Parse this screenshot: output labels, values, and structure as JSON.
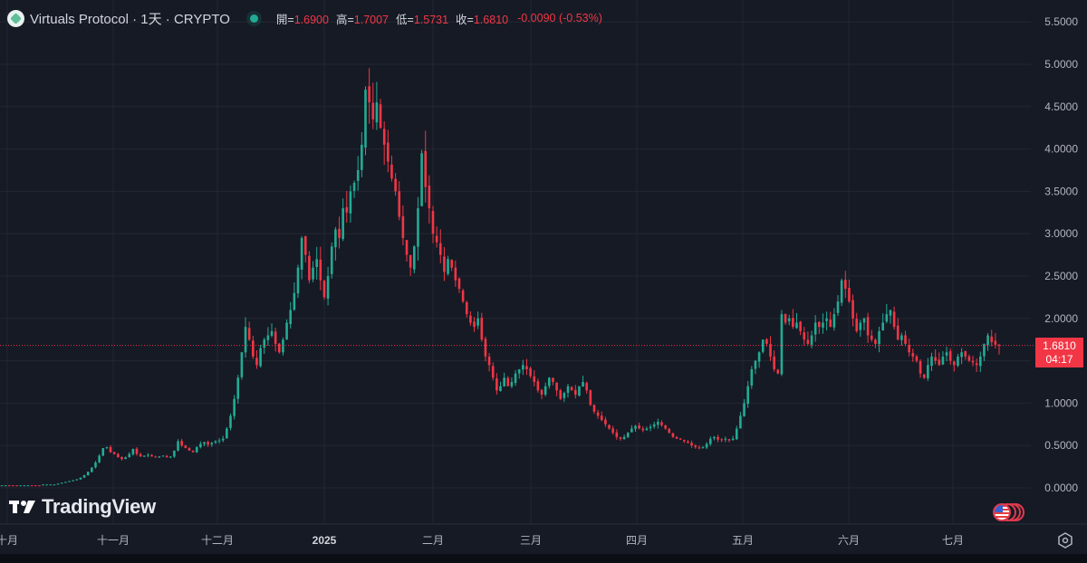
{
  "header": {
    "symbol": "Virtuals Protocol",
    "sep1": "·",
    "interval": "1天",
    "sep2": "·",
    "exchange": "CRYPTO",
    "title_full": "Virtuals Protocol · 1天 · CRYPTO",
    "logo_icon": "virtuals-logo-icon",
    "market_status_icon": "market-open-dot-icon",
    "ohlc": {
      "open_label": "開=",
      "open": "1.6900",
      "high_label": "高=",
      "high": "1.7007",
      "low_label": "低=",
      "low": "1.5731",
      "close_label": "收=",
      "close": "1.6810",
      "change": "-0.0090 (-0.53%)"
    }
  },
  "price_scale": {
    "labels": [
      "5.5000",
      "5.0000",
      "4.5000",
      "4.0000",
      "3.5000",
      "3.0000",
      "2.5000",
      "2.0000",
      "1.0000",
      "0.5000",
      "0.0000"
    ],
    "current_price": "1.6810",
    "countdown": "04:17"
  },
  "time_scale": {
    "labels": [
      "十月",
      "十一月",
      "十二月",
      "2025",
      "二月",
      "三月",
      "四月",
      "五月",
      "六月",
      "七月"
    ]
  },
  "branding": {
    "name": "TradingView",
    "mark": "TV"
  },
  "colors": {
    "background": "#161a25",
    "up": "#22ab94",
    "down": "#f23645",
    "grid": "#232733",
    "axis_text": "#b2b5be",
    "last_price_line": "#f23645"
  },
  "chart_data": {
    "type": "candlestick",
    "title": "Virtuals Protocol · 1天 · CRYPTO",
    "xlabel": "",
    "ylabel": "",
    "ylim": [
      -0.3,
      5.6
    ],
    "y_ticks": [
      0,
      0.5,
      1,
      1.5,
      2,
      2.5,
      3,
      3.5,
      4,
      4.5,
      5,
      5.5
    ],
    "x_tick_labels": [
      "十月",
      "十一月",
      "十二月",
      "2025",
      "二月",
      "三月",
      "四月",
      "五月",
      "六月",
      "七月"
    ],
    "grid": true,
    "last": {
      "open": 1.69,
      "high": 1.7007,
      "low": 1.5731,
      "close": 1.681,
      "change": -0.009,
      "change_pct": -0.53
    },
    "approx_path_note": "daily closes (approximate, read from chart)",
    "closes": [
      0.03,
      0.03,
      0.03,
      0.03,
      0.03,
      0.03,
      0.03,
      0.03,
      0.03,
      0.03,
      0.03,
      0.04,
      0.04,
      0.04,
      0.04,
      0.05,
      0.06,
      0.07,
      0.08,
      0.09,
      0.1,
      0.12,
      0.15,
      0.19,
      0.24,
      0.3,
      0.38,
      0.47,
      0.48,
      0.42,
      0.4,
      0.36,
      0.34,
      0.36,
      0.4,
      0.46,
      0.4,
      0.37,
      0.38,
      0.39,
      0.37,
      0.36,
      0.37,
      0.38,
      0.36,
      0.37,
      0.44,
      0.55,
      0.5,
      0.47,
      0.44,
      0.42,
      0.48,
      0.52,
      0.54,
      0.51,
      0.53,
      0.55,
      0.56,
      0.58,
      0.7,
      0.85,
      1.05,
      1.3,
      1.6,
      1.9,
      1.75,
      1.55,
      1.45,
      1.65,
      1.75,
      1.8,
      1.85,
      1.7,
      1.6,
      1.75,
      1.95,
      2.1,
      2.3,
      2.6,
      2.95,
      2.75,
      2.45,
      2.6,
      2.7,
      2.45,
      2.25,
      2.5,
      2.85,
      3.05,
      2.95,
      3.3,
      3.25,
      3.5,
      3.6,
      3.75,
      4.05,
      4.7,
      4.55,
      4.35,
      4.55,
      4.25,
      4.05,
      3.85,
      3.65,
      3.5,
      3.2,
      2.95,
      2.75,
      2.6,
      2.85,
      3.3,
      3.95,
      3.55,
      3.3,
      3.0,
      2.9,
      2.75,
      2.55,
      2.7,
      2.6,
      2.45,
      2.35,
      2.2,
      2.05,
      1.95,
      1.9,
      2.0,
      1.75,
      1.55,
      1.45,
      1.3,
      1.15,
      1.2,
      1.3,
      1.2,
      1.25,
      1.35,
      1.4,
      1.45,
      1.4,
      1.32,
      1.25,
      1.15,
      1.1,
      1.2,
      1.3,
      1.25,
      1.15,
      1.05,
      1.12,
      1.2,
      1.15,
      1.1,
      1.2,
      1.25,
      1.15,
      0.98,
      0.9,
      0.85,
      0.8,
      0.75,
      0.7,
      0.65,
      0.6,
      0.58,
      0.6,
      0.65,
      0.7,
      0.73,
      0.7,
      0.68,
      0.7,
      0.72,
      0.75,
      0.78,
      0.74,
      0.7,
      0.65,
      0.6,
      0.58,
      0.57,
      0.55,
      0.53,
      0.5,
      0.48,
      0.47,
      0.48,
      0.52,
      0.58,
      0.6,
      0.57,
      0.57,
      0.58,
      0.56,
      0.58,
      0.7,
      0.85,
      1.0,
      1.2,
      1.4,
      1.5,
      1.6,
      1.75,
      1.7,
      1.55,
      1.4,
      1.35,
      2.05,
      1.95,
      2.0,
      1.9,
      1.95,
      1.85,
      1.75,
      1.7,
      1.8,
      1.95,
      1.9,
      1.95,
      2.0,
      1.9,
      2.05,
      2.2,
      2.45,
      2.35,
      2.2,
      2.0,
      1.85,
      1.95,
      2.0,
      1.8,
      1.75,
      1.7,
      1.85,
      1.95,
      2.05,
      2.1,
      1.9,
      1.75,
      1.8,
      1.7,
      1.6,
      1.55,
      1.5,
      1.35,
      1.3,
      1.45,
      1.55,
      1.5,
      1.45,
      1.55,
      1.6,
      1.5,
      1.45,
      1.55,
      1.6,
      1.55,
      1.5,
      1.48,
      1.45,
      1.55,
      1.7,
      1.8,
      1.72,
      1.69,
      1.681
    ]
  }
}
